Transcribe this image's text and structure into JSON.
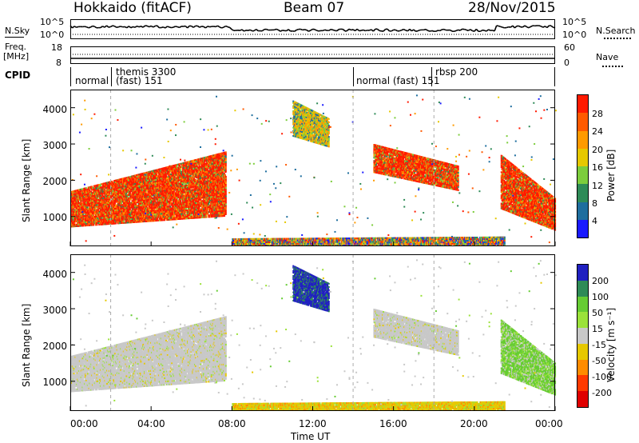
{
  "header": {
    "left_title": "Hokkaido (fitACF)",
    "center_title": "Beam 07",
    "right_title": "28/Nov/2015"
  },
  "top_panels": {
    "nsky_label": "N.Sky",
    "nsky_tick_top": "10^5",
    "nsky_tick_bottom": "10^0",
    "nsearch_label": "N.Search",
    "nsearch_tick_top": "10^5",
    "nsearch_tick_bottom": "10^0",
    "freq_label_1": "Freq.",
    "freq_label_2": "[MHz]",
    "freq_tick_top": "18",
    "freq_tick_bottom": "8",
    "nave_label": "Nave",
    "nave_tick_top": "60",
    "nave_tick_bottom": "0",
    "cpid_label": "CPID",
    "cpid_segments": [
      {
        "text": "normal",
        "start_h": 0.0,
        "end_h": 2.0
      },
      {
        "text": "themis 3300",
        "sub": "(fast) 151",
        "start_h": 2.0,
        "end_h": 14.0
      },
      {
        "text": "normal (fast) 151",
        "start_h": 14.0,
        "end_h": 18.0
      },
      {
        "text": "rbsp 200",
        "start_h": 18.0,
        "end_h": 24.0
      }
    ]
  },
  "x_axis": {
    "label": "Time UT",
    "ticks": [
      "00:00",
      "04:00",
      "08:00",
      "12:00",
      "16:00",
      "20:00",
      "00:00"
    ]
  },
  "power_panel": {
    "ylabel": "Slant Range [km]",
    "yticks": [
      "1000",
      "2000",
      "3000",
      "4000"
    ],
    "colorbar_label": "Power [dB]",
    "colorbar_ticks": [
      "4",
      "8",
      "12",
      "16",
      "20",
      "24",
      "28"
    ],
    "colors": [
      "#1a1aff",
      "#1e6e9e",
      "#2e8b57",
      "#7ccd3c",
      "#e6c800",
      "#ff9a00",
      "#ff5a00",
      "#ff1a00"
    ]
  },
  "velocity_panel": {
    "ylabel": "Slant Range [km]",
    "yticks": [
      "1000",
      "2000",
      "3000",
      "4000"
    ],
    "colorbar_label": "Velocity [m s⁻¹]",
    "colorbar_ticks": [
      "200",
      "100",
      "50",
      "15",
      "-15",
      "-50",
      "-100",
      "-200"
    ],
    "colors": [
      "#2020c0",
      "#2e8b57",
      "#66cc33",
      "#9be23a",
      "#c8c8c8",
      "#e6c800",
      "#ff8c00",
      "#ff3a00",
      "#e00000"
    ]
  },
  "chart_data": {
    "type": "heatmap",
    "x_range_hours": [
      0,
      24
    ],
    "y_range_km": [
      180,
      4500
    ],
    "regions": [
      {
        "name": "dawn-echo",
        "t0": 0.0,
        "t1": 7.7,
        "r_low0": 700,
        "r_high0": 1700,
        "r_low1": 1000,
        "r_high1": 2800,
        "power": "high",
        "velocity": "low"
      },
      {
        "name": "evening-echo",
        "t0": 15.0,
        "t1": 19.2,
        "r_low0": 2200,
        "r_high0": 3000,
        "r_low1": 1700,
        "r_high1": 2400,
        "power": "high",
        "velocity": "low"
      },
      {
        "name": "late-echo",
        "t0": 21.3,
        "t1": 24.0,
        "r_low0": 1200,
        "r_high0": 2700,
        "r_low1": 600,
        "r_high1": 1500,
        "power": "high",
        "velocity": "positive"
      },
      {
        "name": "midday-streak",
        "t0": 11.0,
        "t1": 12.8,
        "r_low0": 3200,
        "r_high0": 4200,
        "r_low1": 2900,
        "r_high1": 3700,
        "power": "medium",
        "velocity": "positive-strong"
      },
      {
        "name": "near-range",
        "t0": 8.0,
        "t1": 21.5,
        "r_low0": 180,
        "r_high0": 400,
        "r_low1": 180,
        "r_high1": 450,
        "power": "mixed",
        "velocity": "negative-small"
      }
    ]
  }
}
